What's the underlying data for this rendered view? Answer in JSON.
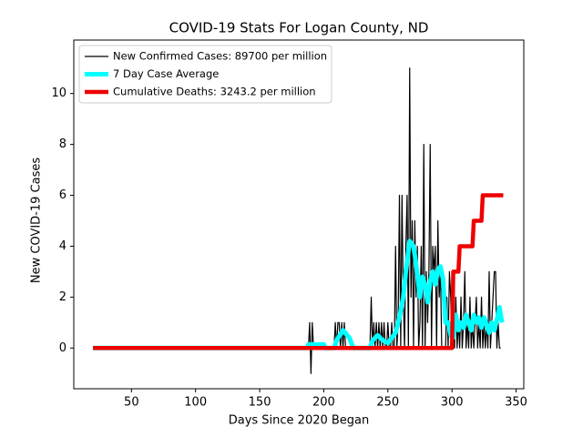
{
  "chart_data": {
    "type": "line",
    "title": "COVID-19 Stats For Logan County, ND",
    "xlabel": "Days Since 2020 Began",
    "ylabel": "New COVID-19 Cases",
    "xlim": [
      5,
      356
    ],
    "ylim": [
      -1.6,
      12.1
    ],
    "xticks": [
      50,
      100,
      150,
      200,
      250,
      300,
      350
    ],
    "yticks": [
      0,
      2,
      4,
      6,
      8,
      10
    ],
    "legend": "upper left",
    "series": [
      {
        "name": "New Confirmed Cases: 89700 per million",
        "color": "#000000",
        "width": 1.2,
        "x": [
          20,
          188,
          189,
          190,
          191,
          192,
          193,
          194,
          195,
          196,
          197,
          198,
          199,
          200,
          201,
          202,
          203,
          204,
          205,
          206,
          207,
          208,
          209,
          210,
          211,
          212,
          213,
          214,
          215,
          216,
          217,
          218,
          219,
          220,
          221,
          222,
          223,
          224,
          225,
          226,
          227,
          228,
          229,
          230,
          231,
          232,
          233,
          234,
          235,
          236,
          237,
          238,
          239,
          240,
          241,
          242,
          243,
          244,
          245,
          246,
          247,
          248,
          249,
          250,
          251,
          252,
          253,
          254,
          255,
          256,
          257,
          258,
          259,
          260,
          261,
          262,
          263,
          264,
          265,
          266,
          267,
          268,
          269,
          270,
          271,
          272,
          273,
          274,
          275,
          276,
          277,
          278,
          279,
          280,
          281,
          282,
          283,
          284,
          285,
          286,
          287,
          288,
          289,
          290,
          291,
          292,
          293,
          294,
          295,
          296,
          297,
          298,
          299,
          300,
          301,
          302,
          303,
          304,
          305,
          306,
          307,
          308,
          309,
          310,
          311,
          312,
          313,
          314,
          315,
          316,
          317,
          318,
          319,
          320,
          321,
          322,
          323,
          324,
          325,
          326,
          327,
          328,
          329,
          330,
          331,
          332,
          333,
          334,
          335,
          336,
          337,
          338
        ],
        "values": [
          0,
          0,
          1,
          -1,
          1,
          0,
          0,
          0,
          0,
          0,
          0,
          0,
          0,
          0,
          0,
          0,
          0,
          0,
          0,
          0,
          0,
          0,
          1,
          0,
          1,
          1,
          0,
          1,
          0,
          1,
          0,
          0,
          0,
          0,
          0,
          0,
          0,
          0,
          0,
          0,
          0,
          0,
          0,
          0,
          0,
          0,
          0,
          0,
          0,
          0,
          2,
          0,
          1,
          0,
          1,
          0,
          1,
          0,
          1,
          0,
          1,
          0,
          0,
          1,
          0,
          0,
          1,
          0,
          0,
          4,
          0,
          1,
          6,
          0,
          6,
          2,
          0,
          4,
          6,
          0,
          11,
          2,
          5,
          0,
          5,
          2,
          4,
          0,
          1,
          4,
          0,
          8,
          0,
          3,
          1,
          3,
          8,
          0,
          4,
          3,
          4,
          0,
          5,
          2,
          3,
          0,
          0,
          0,
          0,
          2,
          0,
          3,
          2,
          0,
          1,
          0,
          2,
          0,
          1,
          0,
          2,
          0,
          1,
          3,
          0,
          1,
          0,
          2,
          0,
          1,
          0,
          1,
          2,
          0,
          1,
          0,
          2,
          0,
          1,
          0,
          1,
          0,
          3,
          0,
          1,
          2,
          3,
          3,
          0,
          1,
          0,
          0
        ]
      },
      {
        "name": "7 Day Case Average",
        "color": "#00ffff",
        "width": 5,
        "x": [
          20,
          187,
          188,
          200,
          201,
          208,
          210,
          215,
          220,
          223,
          236,
          238,
          242,
          246,
          250,
          253,
          256,
          259,
          262,
          264,
          267,
          270,
          272,
          275,
          277,
          279,
          281,
          283,
          285,
          287,
          289,
          291,
          293,
          295,
          297,
          299,
          301,
          303,
          305,
          307,
          309,
          311,
          313,
          315,
          317,
          319,
          321,
          323,
          325,
          327,
          329,
          331,
          333,
          335,
          337,
          339
        ],
        "values": [
          0,
          0,
          0.14,
          0.14,
          0,
          0,
          0.3,
          0.7,
          0.4,
          0,
          0,
          0.3,
          0.5,
          0.3,
          0.2,
          0.4,
          0.6,
          1.2,
          2.0,
          3.0,
          4.2,
          4.0,
          3.3,
          2.0,
          2.8,
          2.5,
          1.8,
          2.6,
          3.0,
          2.5,
          3.1,
          3.2,
          2.7,
          1.0,
          1.0,
          0.5,
          0.4,
          1.3,
          0.7,
          1.0,
          0.8,
          1.3,
          1.0,
          0.7,
          1.3,
          1.0,
          1.2,
          0.8,
          1.2,
          0.9,
          0.6,
          1.0,
          0.7,
          1.1,
          1.6,
          1.0
        ]
      },
      {
        "name": "Cumulative Deaths: 3243.2 per million",
        "color": "#ee0000",
        "width": 4.5,
        "x": [
          20,
          300,
          301,
          305,
          306,
          316,
          317,
          323,
          324,
          340
        ],
        "values": [
          0,
          0,
          3,
          3,
          4,
          4,
          5,
          5,
          6,
          6
        ]
      }
    ]
  }
}
